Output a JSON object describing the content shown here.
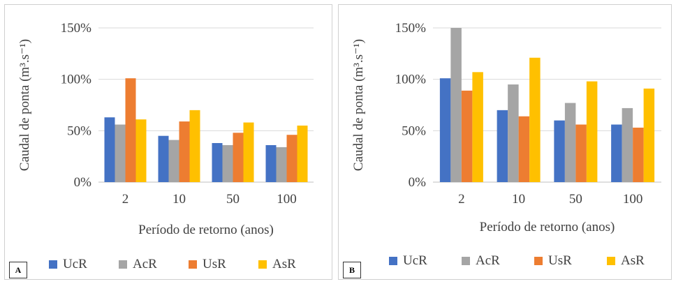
{
  "panels": [
    {
      "label": "A"
    },
    {
      "label": "B"
    }
  ],
  "chart_data": [
    {
      "type": "bar",
      "categories": [
        "2",
        "10",
        "50",
        "100"
      ],
      "series": [
        {
          "name": "UcR",
          "values": [
            63,
            45,
            38,
            36
          ],
          "color": "#4472C4"
        },
        {
          "name": "AcR",
          "values": [
            56,
            41,
            36,
            34
          ],
          "color": "#A5A5A5"
        },
        {
          "name": "UsR",
          "values": [
            101,
            59,
            48,
            46
          ],
          "color": "#ED7D31"
        },
        {
          "name": "AsR",
          "values": [
            61,
            70,
            58,
            55
          ],
          "color": "#FFC000"
        }
      ],
      "yticks": [
        "0%",
        "50%",
        "100%",
        "150%"
      ],
      "ylim": [
        0,
        150
      ],
      "xlabel": "Período de retorno (anos)",
      "ylabel": "Caudal de ponta (m³.s⁻¹)",
      "grid": true,
      "legend": "bottom"
    },
    {
      "type": "bar",
      "categories": [
        "2",
        "10",
        "50",
        "100"
      ],
      "series": [
        {
          "name": "UcR",
          "values": [
            101,
            70,
            60,
            56
          ],
          "color": "#4472C4"
        },
        {
          "name": "AcR",
          "values": [
            150,
            95,
            77,
            72
          ],
          "color": "#A5A5A5"
        },
        {
          "name": "UsR",
          "values": [
            89,
            64,
            56,
            53
          ],
          "color": "#ED7D31"
        },
        {
          "name": "AsR",
          "values": [
            107,
            121,
            98,
            91
          ],
          "color": "#FFC000"
        }
      ],
      "yticks": [
        "0%",
        "50%",
        "100%",
        "150%"
      ],
      "ylim": [
        0,
        150
      ],
      "xlabel": "Período de retorno (anos)",
      "ylabel": "Caudal de ponta (m³.s⁻¹)",
      "grid": true,
      "legend": "bottom"
    }
  ]
}
